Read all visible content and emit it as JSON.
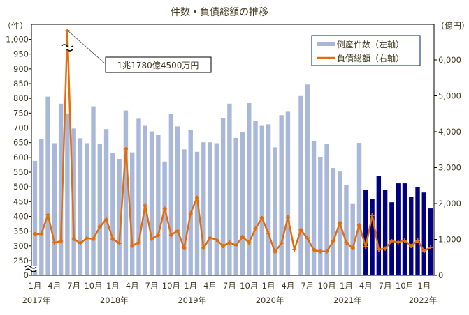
{
  "chart_data": {
    "type": "bar+line",
    "title": "件数・負債総額の推移",
    "left_axis": {
      "unit_label": "（件）",
      "ticks": [
        0,
        250,
        300,
        350,
        400,
        450,
        500,
        550,
        600,
        650,
        700,
        750,
        800,
        850,
        900,
        950,
        1000
      ],
      "tick_labels": [
        "0",
        "250",
        "300",
        "350",
        "400",
        "450",
        "500",
        "550",
        "600",
        "650",
        "700",
        "750",
        "800",
        "850",
        "900",
        "950",
        "1,000"
      ],
      "broken_between": [
        0,
        250
      ]
    },
    "right_axis": {
      "unit_label": "（億円）",
      "ticks": [
        0,
        1000,
        2000,
        3000,
        4000,
        5000,
        6000
      ],
      "tick_labels": [
        "0",
        "1,000",
        "2,000",
        "3,000",
        "4,000",
        "5,000",
        "6,000"
      ],
      "ylim": [
        0,
        6000
      ]
    },
    "x_month_labels": [
      "1月",
      "4月",
      "7月",
      "10月",
      "1月",
      "4月",
      "7月",
      "10月",
      "1月",
      "4月",
      "7月",
      "10月",
      "1月",
      "4月",
      "7月",
      "10月",
      "1月",
      "4月",
      "7月",
      "10月",
      "1月"
    ],
    "x_year_labels": [
      {
        "index": 0,
        "label": "2017年"
      },
      {
        "index": 12,
        "label": "2018年"
      },
      {
        "index": 24,
        "label": "2019年"
      },
      {
        "index": 36,
        "label": "2020年"
      },
      {
        "index": 48,
        "label": "2021年"
      },
      {
        "index": 60,
        "label": "2022年"
      }
    ],
    "highlight_from_index": 51,
    "series": [
      {
        "name": "倒産件数（左軸）",
        "type": "bar",
        "axis": "left",
        "color": "#a9b8d8",
        "highlight_color": "#000080",
        "values": [
          588,
          662,
          806,
          648,
          782,
          749,
          698,
          665,
          648,
          773,
          645,
          696,
          614,
          595,
          759,
          617,
          731,
          707,
          688,
          677,
          586,
          747,
          705,
          627,
          693,
          619,
          651,
          651,
          648,
          733,
          782,
          666,
          686,
          784,
          724,
          707,
          712,
          634,
          743,
          757,
          null,
          808,
          847,
          656,
          602,
          646,
          564,
          552,
          506,
          442,
          649,
          489,
          460,
          538,
          490,
          448,
          512,
          512,
          467,
          500,
          481,
          427
        ]
      },
      {
        "name": "負債総額（右軸）",
        "type": "line",
        "axis": "right",
        "color": "#e46c0a",
        "values": [
          1146,
          1150,
          1690,
          910,
          950,
          11780.45,
          1015,
          893,
          1035,
          1015,
          1346,
          1560,
          1010,
          893,
          3515,
          822,
          913,
          1948,
          1015,
          1120,
          1858,
          1120,
          1243,
          757,
          1728,
          2162,
          763,
          1048,
          990,
          815,
          913,
          835,
          1068,
          913,
          1300,
          1592,
          1165,
          647,
          893,
          1612,
          718,
          1262,
          1035,
          699,
          666,
          666,
          951,
          1456,
          913,
          757,
          1398,
          796,
          1670,
          718,
          744,
          951,
          919,
          971,
          815,
          971,
          680,
          777
        ]
      }
    ],
    "annotation": {
      "index": 5,
      "text": "1兆1780億4500万円"
    }
  }
}
